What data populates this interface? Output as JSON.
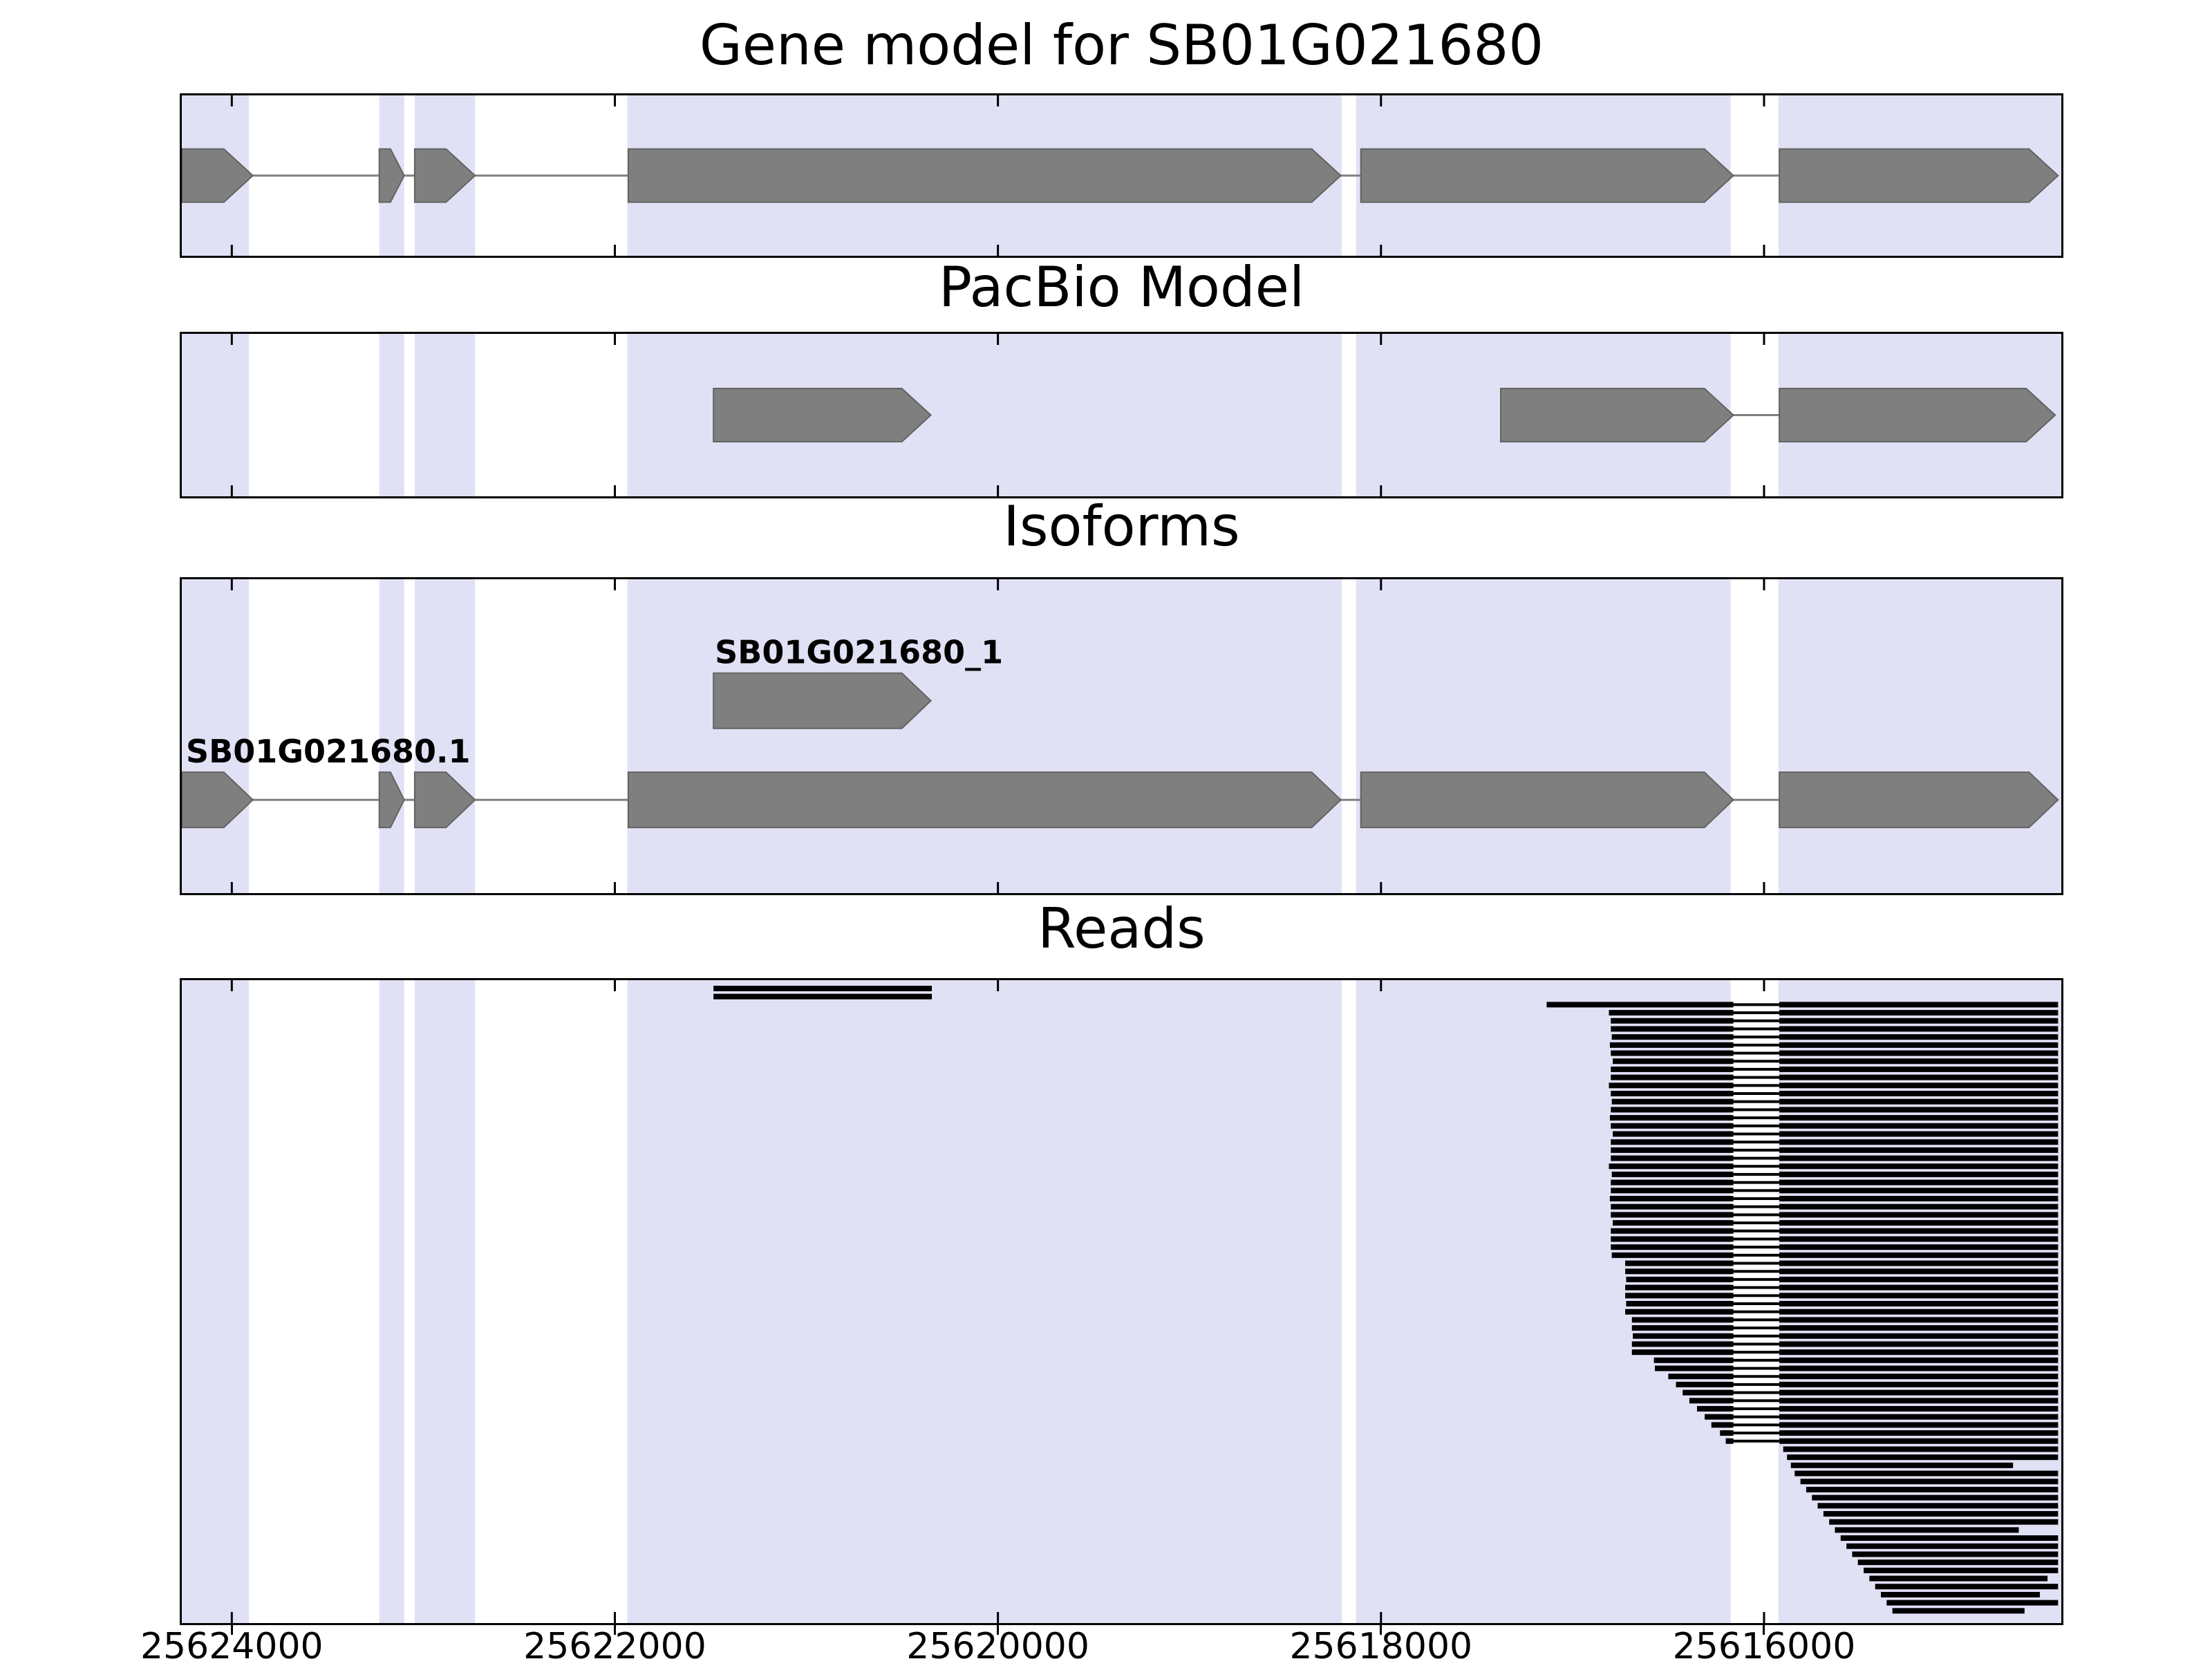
{
  "chart_data": {
    "type": "genome-tracks",
    "colors": {
      "band": "#e1e1f6",
      "exon": "#7f7f7f",
      "exon_edge": "#636363",
      "connector": "#7f7f7f",
      "read": "#000000",
      "text": "#000000"
    },
    "x_axis": {
      "min": 25614448,
      "max": 25624261,
      "direction": "decreasing-left-to-right",
      "ticks": [
        25624000,
        25622000,
        25620000,
        25618000,
        25616000
      ],
      "tick_labels": [
        "25624000",
        "25622000",
        "25620000",
        "25618000",
        "25616000"
      ]
    },
    "highlight_bands": [
      [
        25624261,
        25623910
      ],
      [
        25623230,
        25623100
      ],
      [
        25623045,
        25622730
      ],
      [
        25621935,
        25618205
      ],
      [
        25618130,
        25616175
      ],
      [
        25615925,
        25614448
      ]
    ],
    "panels": [
      {
        "title": "Gene model for SB01G021680",
        "type": "features",
        "features": [
          {
            "label": "",
            "row": 0.5,
            "exons": [
              [
                25624260,
                25623890
              ],
              [
                25623230,
                25623100
              ],
              [
                25623045,
                25622730
              ],
              [
                25621930,
                25618210
              ],
              [
                25618105,
                25616160
              ],
              [
                25615920,
                25614465
              ]
            ]
          }
        ]
      },
      {
        "title": "PacBio Model",
        "type": "features",
        "features": [
          {
            "label": "",
            "row": 0.5,
            "exons": [
              [
                25621485,
                25620350
              ]
            ]
          },
          {
            "label": "",
            "row": 0.5,
            "exons": [
              [
                25617375,
                25616160
              ],
              [
                25615920,
                25614480
              ]
            ]
          }
        ]
      },
      {
        "title": "Isoforms",
        "type": "features",
        "features": [
          {
            "label": "SB01G021680_1",
            "row": 0.387,
            "exons": [
              [
                25621485,
                25620350
              ]
            ]
          },
          {
            "label": "SB01G021680.1",
            "row": 0.703,
            "exons": [
              [
                25624260,
                25623890
              ],
              [
                25623230,
                25623100
              ],
              [
                25623045,
                25622730
              ],
              [
                25621930,
                25618210
              ],
              [
                25618105,
                25616160
              ],
              [
                25615920,
                25614465
              ]
            ]
          }
        ]
      },
      {
        "title": "Reads",
        "type": "reads",
        "intron_gap": [
          25616160,
          25615920
        ],
        "reads": [
          [
            25621485,
            25620345
          ],
          [
            25621485,
            25620345
          ],
          [
            25617135,
            25614465
          ],
          [
            25616810,
            25614465
          ],
          [
            25616800,
            25614465
          ],
          [
            25616800,
            25614465
          ],
          [
            25616795,
            25614465
          ],
          [
            25616805,
            25614465
          ],
          [
            25616800,
            25614465
          ],
          [
            25616790,
            25614465
          ],
          [
            25616800,
            25614465
          ],
          [
            25616800,
            25614465
          ],
          [
            25616810,
            25614465
          ],
          [
            25616800,
            25614465
          ],
          [
            25616795,
            25614465
          ],
          [
            25616800,
            25614465
          ],
          [
            25616805,
            25614465
          ],
          [
            25616800,
            25614465
          ],
          [
            25616790,
            25614465
          ],
          [
            25616800,
            25614465
          ],
          [
            25616800,
            25614465
          ],
          [
            25616800,
            25614465
          ],
          [
            25616810,
            25614465
          ],
          [
            25616795,
            25614465
          ],
          [
            25616800,
            25614465
          ],
          [
            25616800,
            25614465
          ],
          [
            25616805,
            25614465
          ],
          [
            25616800,
            25614465
          ],
          [
            25616800,
            25614465
          ],
          [
            25616790,
            25614465
          ],
          [
            25616800,
            25614465
          ],
          [
            25616800,
            25614465
          ],
          [
            25616800,
            25614465
          ],
          [
            25616795,
            25614465
          ],
          [
            25616725,
            25614465
          ],
          [
            25616725,
            25614465
          ],
          [
            25616720,
            25614465
          ],
          [
            25616725,
            25614465
          ],
          [
            25616725,
            25614465
          ],
          [
            25616720,
            25614465
          ],
          [
            25616725,
            25614465
          ],
          [
            25616690,
            25614465
          ],
          [
            25616690,
            25614465
          ],
          [
            25616685,
            25614465
          ],
          [
            25616690,
            25614465
          ],
          [
            25616690,
            25614465
          ],
          [
            25616575,
            25614465
          ],
          [
            25616570,
            25614465
          ],
          [
            25616500,
            25614465
          ],
          [
            25616460,
            25614465
          ],
          [
            25616425,
            25614465
          ],
          [
            25616390,
            25614465
          ],
          [
            25616350,
            25614465
          ],
          [
            25616310,
            25614465
          ],
          [
            25616275,
            25614465
          ],
          [
            25616230,
            25614465
          ],
          [
            25616200,
            25614465
          ],
          [
            25615900,
            25614465
          ],
          [
            25615880,
            25614465
          ],
          [
            25615860,
            25614700
          ],
          [
            25615840,
            25614465
          ],
          [
            25615810,
            25614465
          ],
          [
            25615780,
            25614465
          ],
          [
            25615750,
            25614465
          ],
          [
            25615720,
            25614465
          ],
          [
            25615690,
            25614465
          ],
          [
            25615660,
            25614465
          ],
          [
            25615630,
            25614670
          ],
          [
            25615600,
            25614465
          ],
          [
            25615570,
            25614465
          ],
          [
            25615540,
            25614465
          ],
          [
            25615510,
            25614465
          ],
          [
            25615480,
            25614465
          ],
          [
            25615450,
            25614520
          ],
          [
            25615420,
            25614465
          ],
          [
            25615390,
            25614560
          ],
          [
            25615360,
            25614465
          ],
          [
            25615330,
            25614640
          ]
        ]
      }
    ]
  }
}
